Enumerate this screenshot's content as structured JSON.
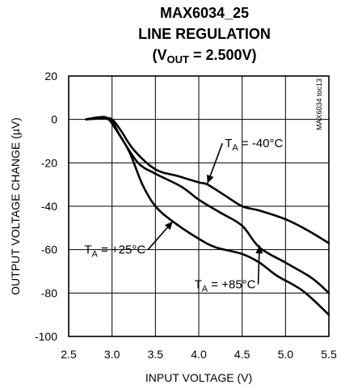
{
  "chart_data": {
    "type": "line",
    "title": {
      "line1": "MAX6034_25",
      "line2": "LINE REGULATION",
      "line3_prefix": "(V",
      "line3_sub": "OUT",
      "line3_suffix": " = 2.500V)"
    },
    "xlabel": "INPUT VOLTAGE (V)",
    "ylabel": "OUTPUT VOLTAGE CHANGE (µV)",
    "xlim": [
      2.5,
      5.5
    ],
    "ylim": [
      -100,
      20
    ],
    "x_ticks": [
      2.5,
      3.0,
      3.5,
      4.0,
      4.5,
      5.0,
      5.5
    ],
    "x_tick_labels": [
      "2.5",
      "3.0",
      "3.5",
      "4.0",
      "4.5",
      "5.0",
      "5.5"
    ],
    "y_ticks": [
      20,
      0,
      -20,
      -40,
      -60,
      -80,
      -100
    ],
    "y_tick_labels": [
      "20",
      "0",
      "-20",
      "-40",
      "-60",
      "-80",
      "-100"
    ],
    "grid": true,
    "watermark": "MAX6034 toc13",
    "series": [
      {
        "name": "TA = -40°C",
        "x": [
          2.7,
          2.9,
          3.0,
          3.1,
          3.25,
          3.5,
          3.75,
          4.0,
          4.1,
          4.3,
          4.5,
          4.7,
          5.0,
          5.25,
          5.5
        ],
        "y": [
          0,
          0.5,
          0,
          -5,
          -14,
          -23,
          -26,
          -29,
          -30,
          -35,
          -40,
          -42,
          -46,
          -51,
          -57
        ]
      },
      {
        "name": "TA = +25°C",
        "x": [
          2.7,
          2.85,
          2.95,
          3.05,
          3.2,
          3.35,
          3.5,
          3.7,
          4.0,
          4.2,
          4.5,
          4.7,
          4.9,
          5.2,
          5.5
        ],
        "y": [
          0,
          1,
          0.5,
          -5,
          -15,
          -30,
          -40,
          -47,
          -55,
          -59,
          -62,
          -66,
          -72,
          -79,
          -90
        ]
      },
      {
        "name": "TA = +85°C",
        "x": [
          2.7,
          2.8,
          2.9,
          3.0,
          3.1,
          3.3,
          3.5,
          3.8,
          4.0,
          4.25,
          4.5,
          4.7,
          5.0,
          5.3,
          5.5
        ],
        "y": [
          0,
          0.5,
          0.5,
          -1,
          -8,
          -20,
          -25,
          -31,
          -37,
          -43,
          -49,
          -59,
          -66,
          -73,
          -80
        ]
      }
    ],
    "annotations": [
      {
        "label_prefix": "T",
        "label_sub": "A",
        "label_suffix": " = -40°C",
        "label_x": 4.3,
        "label_y": -11,
        "arrow_to": [
          4.1,
          -29.5
        ]
      },
      {
        "label_prefix": "T",
        "label_sub": "A",
        "label_suffix": " = +25°C",
        "label_x": 2.68,
        "label_y": -60,
        "arrow_to": [
          3.7,
          -47
        ]
      },
      {
        "label_prefix": "T",
        "label_sub": "A",
        "label_suffix": " = +85°C",
        "label_x": 3.95,
        "label_y": -76,
        "arrow_to": [
          4.7,
          -58
        ]
      }
    ]
  }
}
